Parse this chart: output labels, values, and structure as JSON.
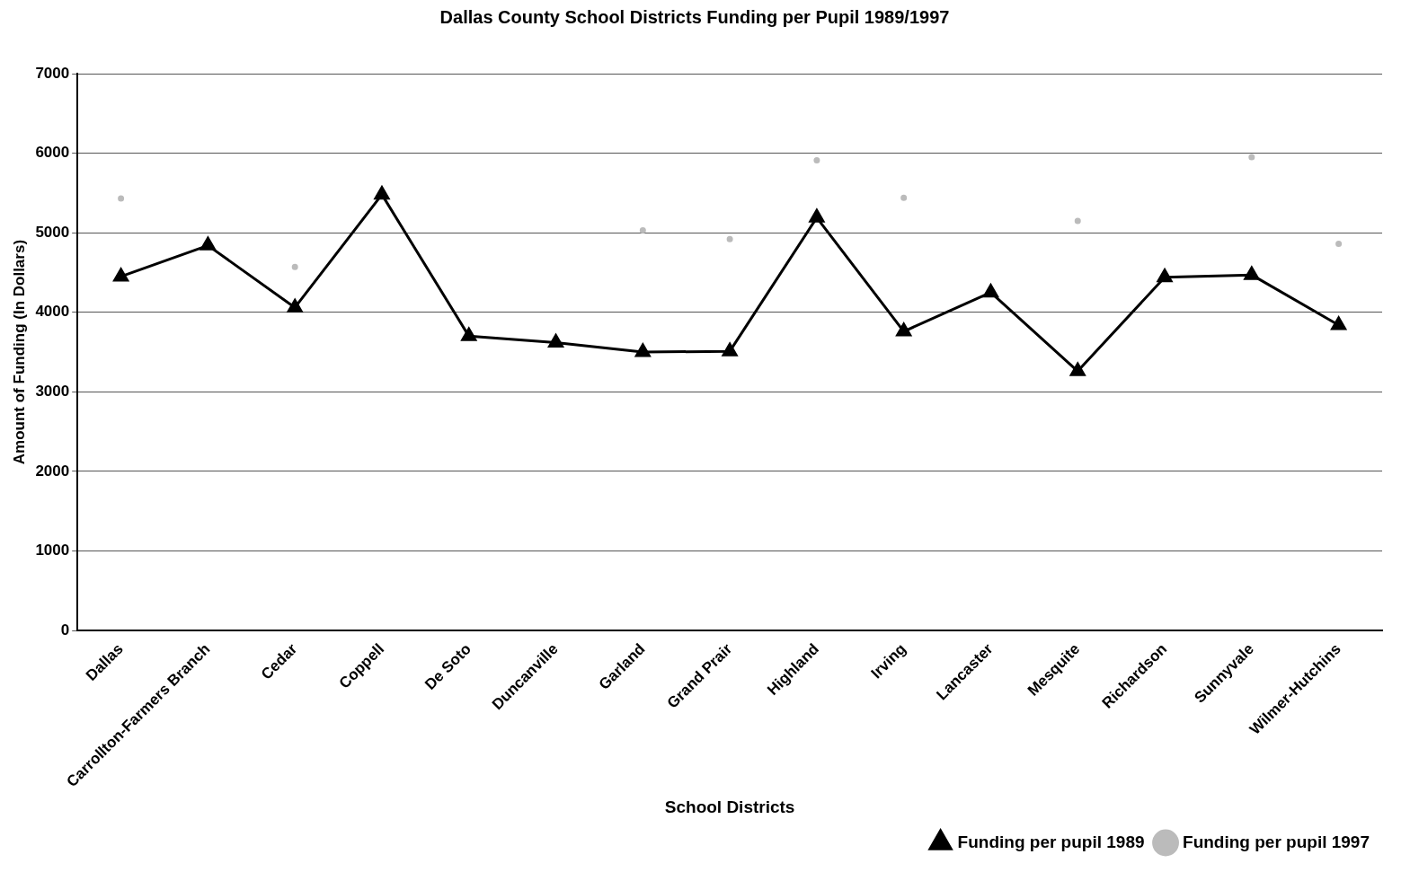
{
  "chart_data": {
    "type": "line",
    "title": "Dallas County School Districts Funding per Pupil 1989/1997",
    "xlabel": "School Districts",
    "ylabel": "Amount of Funding (In Dollars)",
    "categories": [
      "Dallas",
      "Carrollton-Farmers Branch",
      "Cedar",
      "Coppell",
      "De Soto",
      "Duncanville",
      "Garland",
      "Grand Prair",
      "Highland",
      "Irving",
      "Lancaster",
      "Mesquite",
      "Richardson",
      "Sunnyvale",
      "Wilmer-Hutchins"
    ],
    "series": [
      {
        "name": "Funding per pupil 1989",
        "color": "#000000",
        "marker": "triangle",
        "line_style": "solid",
        "values": [
          4450,
          4840,
          4060,
          5480,
          3700,
          3620,
          3500,
          3510,
          5190,
          3760,
          4250,
          3260,
          4440,
          4470,
          3840
        ]
      },
      {
        "name": "Funding per pupil 1997",
        "type": "scatter",
        "color": "#bbbbbb",
        "marker": "circle",
        "values": [
          5430,
          null,
          4570,
          null,
          null,
          null,
          5030,
          4920,
          5910,
          5440,
          null,
          5150,
          null,
          5950,
          4860
        ]
      }
    ],
    "ylim": [
      0,
      7000
    ],
    "yticks": [
      0,
      1000,
      2000,
      3000,
      4000,
      5000,
      6000,
      7000
    ],
    "grid": "y",
    "legend": "bottom right"
  }
}
